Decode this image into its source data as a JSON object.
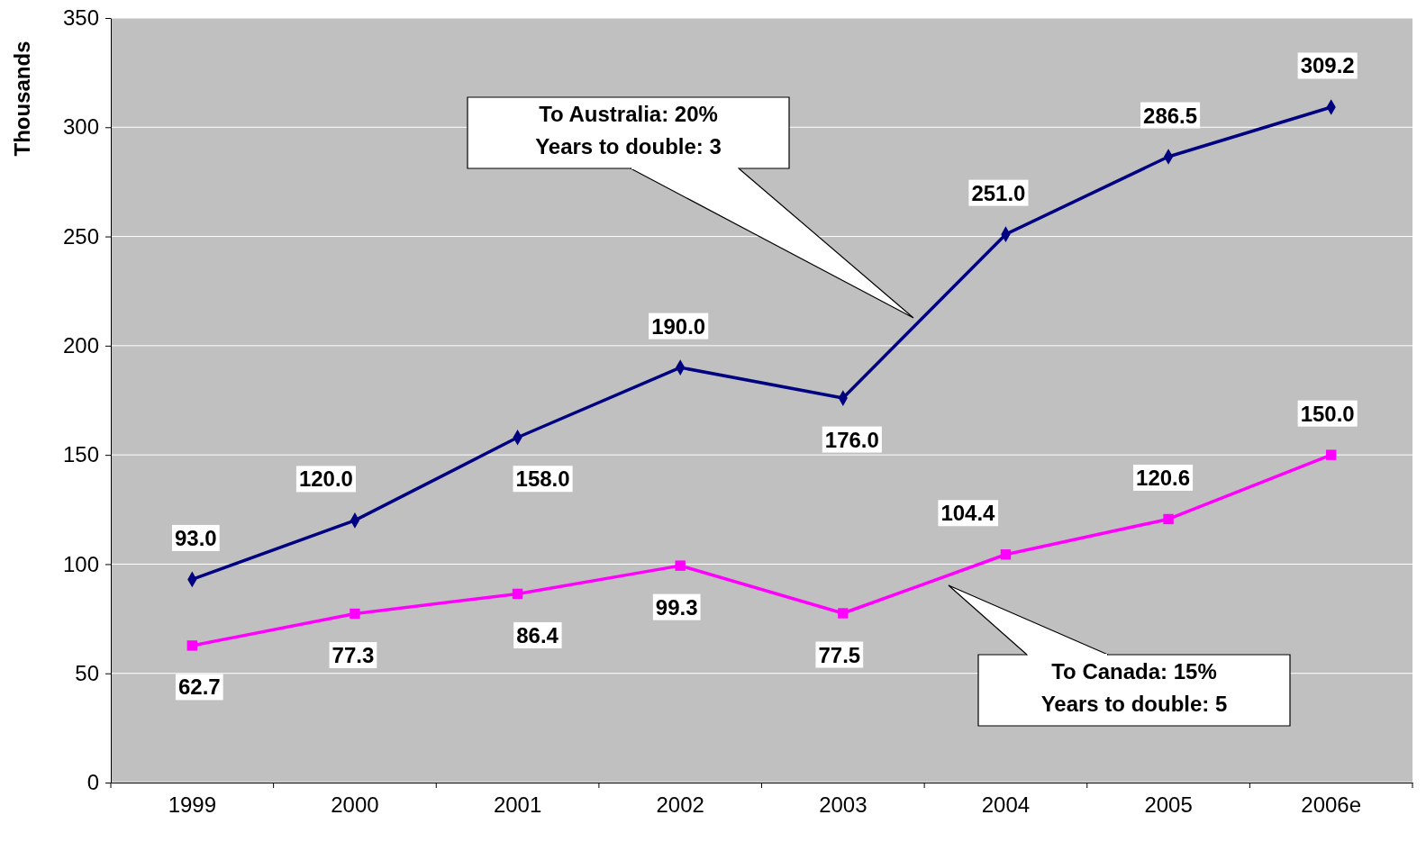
{
  "chart_data": {
    "type": "line",
    "ylabel": "Thousands",
    "categories": [
      "1999",
      "2000",
      "2001",
      "2002",
      "2003",
      "2004",
      "2005",
      "2006e"
    ],
    "series": [
      {
        "color": "#000080",
        "marker": "diamond",
        "values": [
          93.0,
          120.0,
          158.0,
          190.0,
          176.0,
          251.0,
          286.5,
          309.2
        ],
        "value_labels": [
          "93.0",
          "120.0",
          "158.0",
          "190.0",
          "176.0",
          "251.0",
          "286.5",
          "309.2"
        ]
      },
      {
        "color": "#ff00ff",
        "marker": "square",
        "values": [
          62.7,
          77.3,
          86.4,
          99.3,
          77.5,
          104.4,
          120.6,
          150.0
        ],
        "value_labels": [
          "62.7",
          "77.3",
          "86.4",
          "99.3",
          "77.5",
          "104.4",
          "120.6",
          "150.0"
        ]
      }
    ],
    "ylim": [
      0,
      350
    ],
    "yticks": [
      0,
      50,
      100,
      150,
      200,
      250,
      300,
      350
    ],
    "grid": "y",
    "annotations": [
      "To Australia: 20%\nYears to double: 3",
      "To Canada: 15%\nYears to double: 5"
    ]
  }
}
